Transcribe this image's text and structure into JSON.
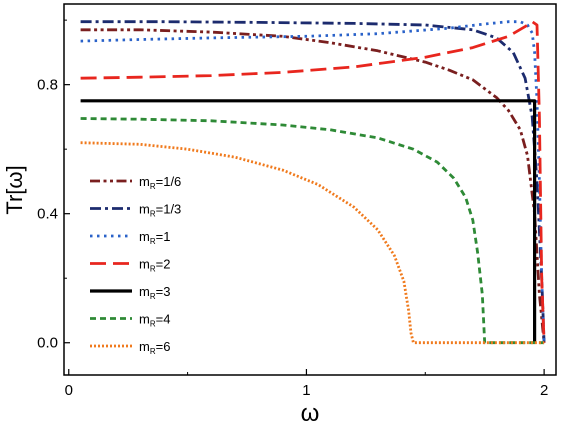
{
  "chart_data": {
    "type": "line",
    "xlabel": "ω",
    "ylabel": "Tr[ω]",
    "xlim": [
      -0.02,
      2.05
    ],
    "ylim": [
      -0.1,
      1.05
    ],
    "xticks": [
      0,
      1,
      2
    ],
    "xtick_labels": [
      "0",
      "1",
      "2"
    ],
    "yticks": [
      0.0,
      0.4,
      0.8
    ],
    "ytick_labels": [
      "0.0",
      "0.4",
      "0.8"
    ],
    "grid": false,
    "legend_position": "lower-left",
    "legend_prefix": "m",
    "legend_subscript": "R",
    "series": [
      {
        "name": "=1/6",
        "color": "#7a1f1f",
        "dash": "dash-dot-dot",
        "x": [
          0.05,
          0.3,
          0.6,
          0.9,
          1.1,
          1.3,
          1.5,
          1.6,
          1.7,
          1.8,
          1.85,
          1.9,
          1.93,
          1.96,
          1.98,
          2.0
        ],
        "y": [
          0.97,
          0.97,
          0.963,
          0.95,
          0.93,
          0.905,
          0.87,
          0.845,
          0.815,
          0.76,
          0.72,
          0.66,
          0.58,
          0.4,
          0.15,
          0.0
        ]
      },
      {
        "name": "=1/3",
        "color": "#1c2b6e",
        "dash": "dash-dot",
        "x": [
          0.05,
          0.4,
          0.8,
          1.2,
          1.5,
          1.7,
          1.8,
          1.87,
          1.92,
          1.95,
          1.97,
          1.99,
          2.0
        ],
        "y": [
          0.995,
          0.995,
          0.993,
          0.99,
          0.985,
          0.97,
          0.945,
          0.9,
          0.82,
          0.7,
          0.5,
          0.2,
          0.0
        ]
      },
      {
        "name": "=1",
        "color": "#2a62c9",
        "dash": "dot",
        "x": [
          0.05,
          0.3,
          0.6,
          1.0,
          1.3,
          1.6,
          1.75,
          1.85,
          1.9,
          1.93,
          1.95,
          1.96,
          1.97,
          1.98,
          1.99,
          2.0
        ],
        "y": [
          0.935,
          0.94,
          0.945,
          0.95,
          0.958,
          0.975,
          0.988,
          0.995,
          0.995,
          0.985,
          0.96,
          0.9,
          0.75,
          0.5,
          0.2,
          0.0
        ]
      },
      {
        "name": "=2",
        "color": "#e8261e",
        "dash": "dash",
        "x": [
          0.05,
          0.3,
          0.6,
          0.9,
          1.2,
          1.5,
          1.7,
          1.85,
          1.92,
          1.95,
          1.97,
          1.98,
          1.99,
          2.0
        ],
        "y": [
          0.82,
          0.823,
          0.828,
          0.838,
          0.855,
          0.885,
          0.915,
          0.95,
          0.98,
          0.995,
          0.985,
          0.7,
          0.2,
          0.0
        ]
      },
      {
        "name": "=3",
        "color": "#000000",
        "dash": "solid",
        "x": [
          0.05,
          1.96,
          1.96
        ],
        "y": [
          0.75,
          0.75,
          0.0
        ]
      },
      {
        "name": "=4",
        "color": "#2e8a36",
        "dash": "short-dash",
        "x": [
          0.05,
          0.3,
          0.6,
          0.9,
          1.1,
          1.3,
          1.45,
          1.55,
          1.62,
          1.67,
          1.7,
          1.72,
          1.74,
          1.75,
          2.0
        ],
        "y": [
          0.695,
          0.693,
          0.688,
          0.675,
          0.66,
          0.635,
          0.6,
          0.56,
          0.51,
          0.45,
          0.38,
          0.28,
          0.15,
          0.0,
          0.0
        ]
      },
      {
        "name": "=6",
        "color": "#f07a1d",
        "dash": "dense-dot",
        "x": [
          0.05,
          0.3,
          0.5,
          0.7,
          0.9,
          1.05,
          1.2,
          1.3,
          1.37,
          1.41,
          1.43,
          1.44,
          1.45,
          2.0
        ],
        "y": [
          0.62,
          0.615,
          0.6,
          0.575,
          0.535,
          0.49,
          0.42,
          0.35,
          0.27,
          0.19,
          0.1,
          0.03,
          0.0,
          0.0
        ]
      }
    ]
  }
}
